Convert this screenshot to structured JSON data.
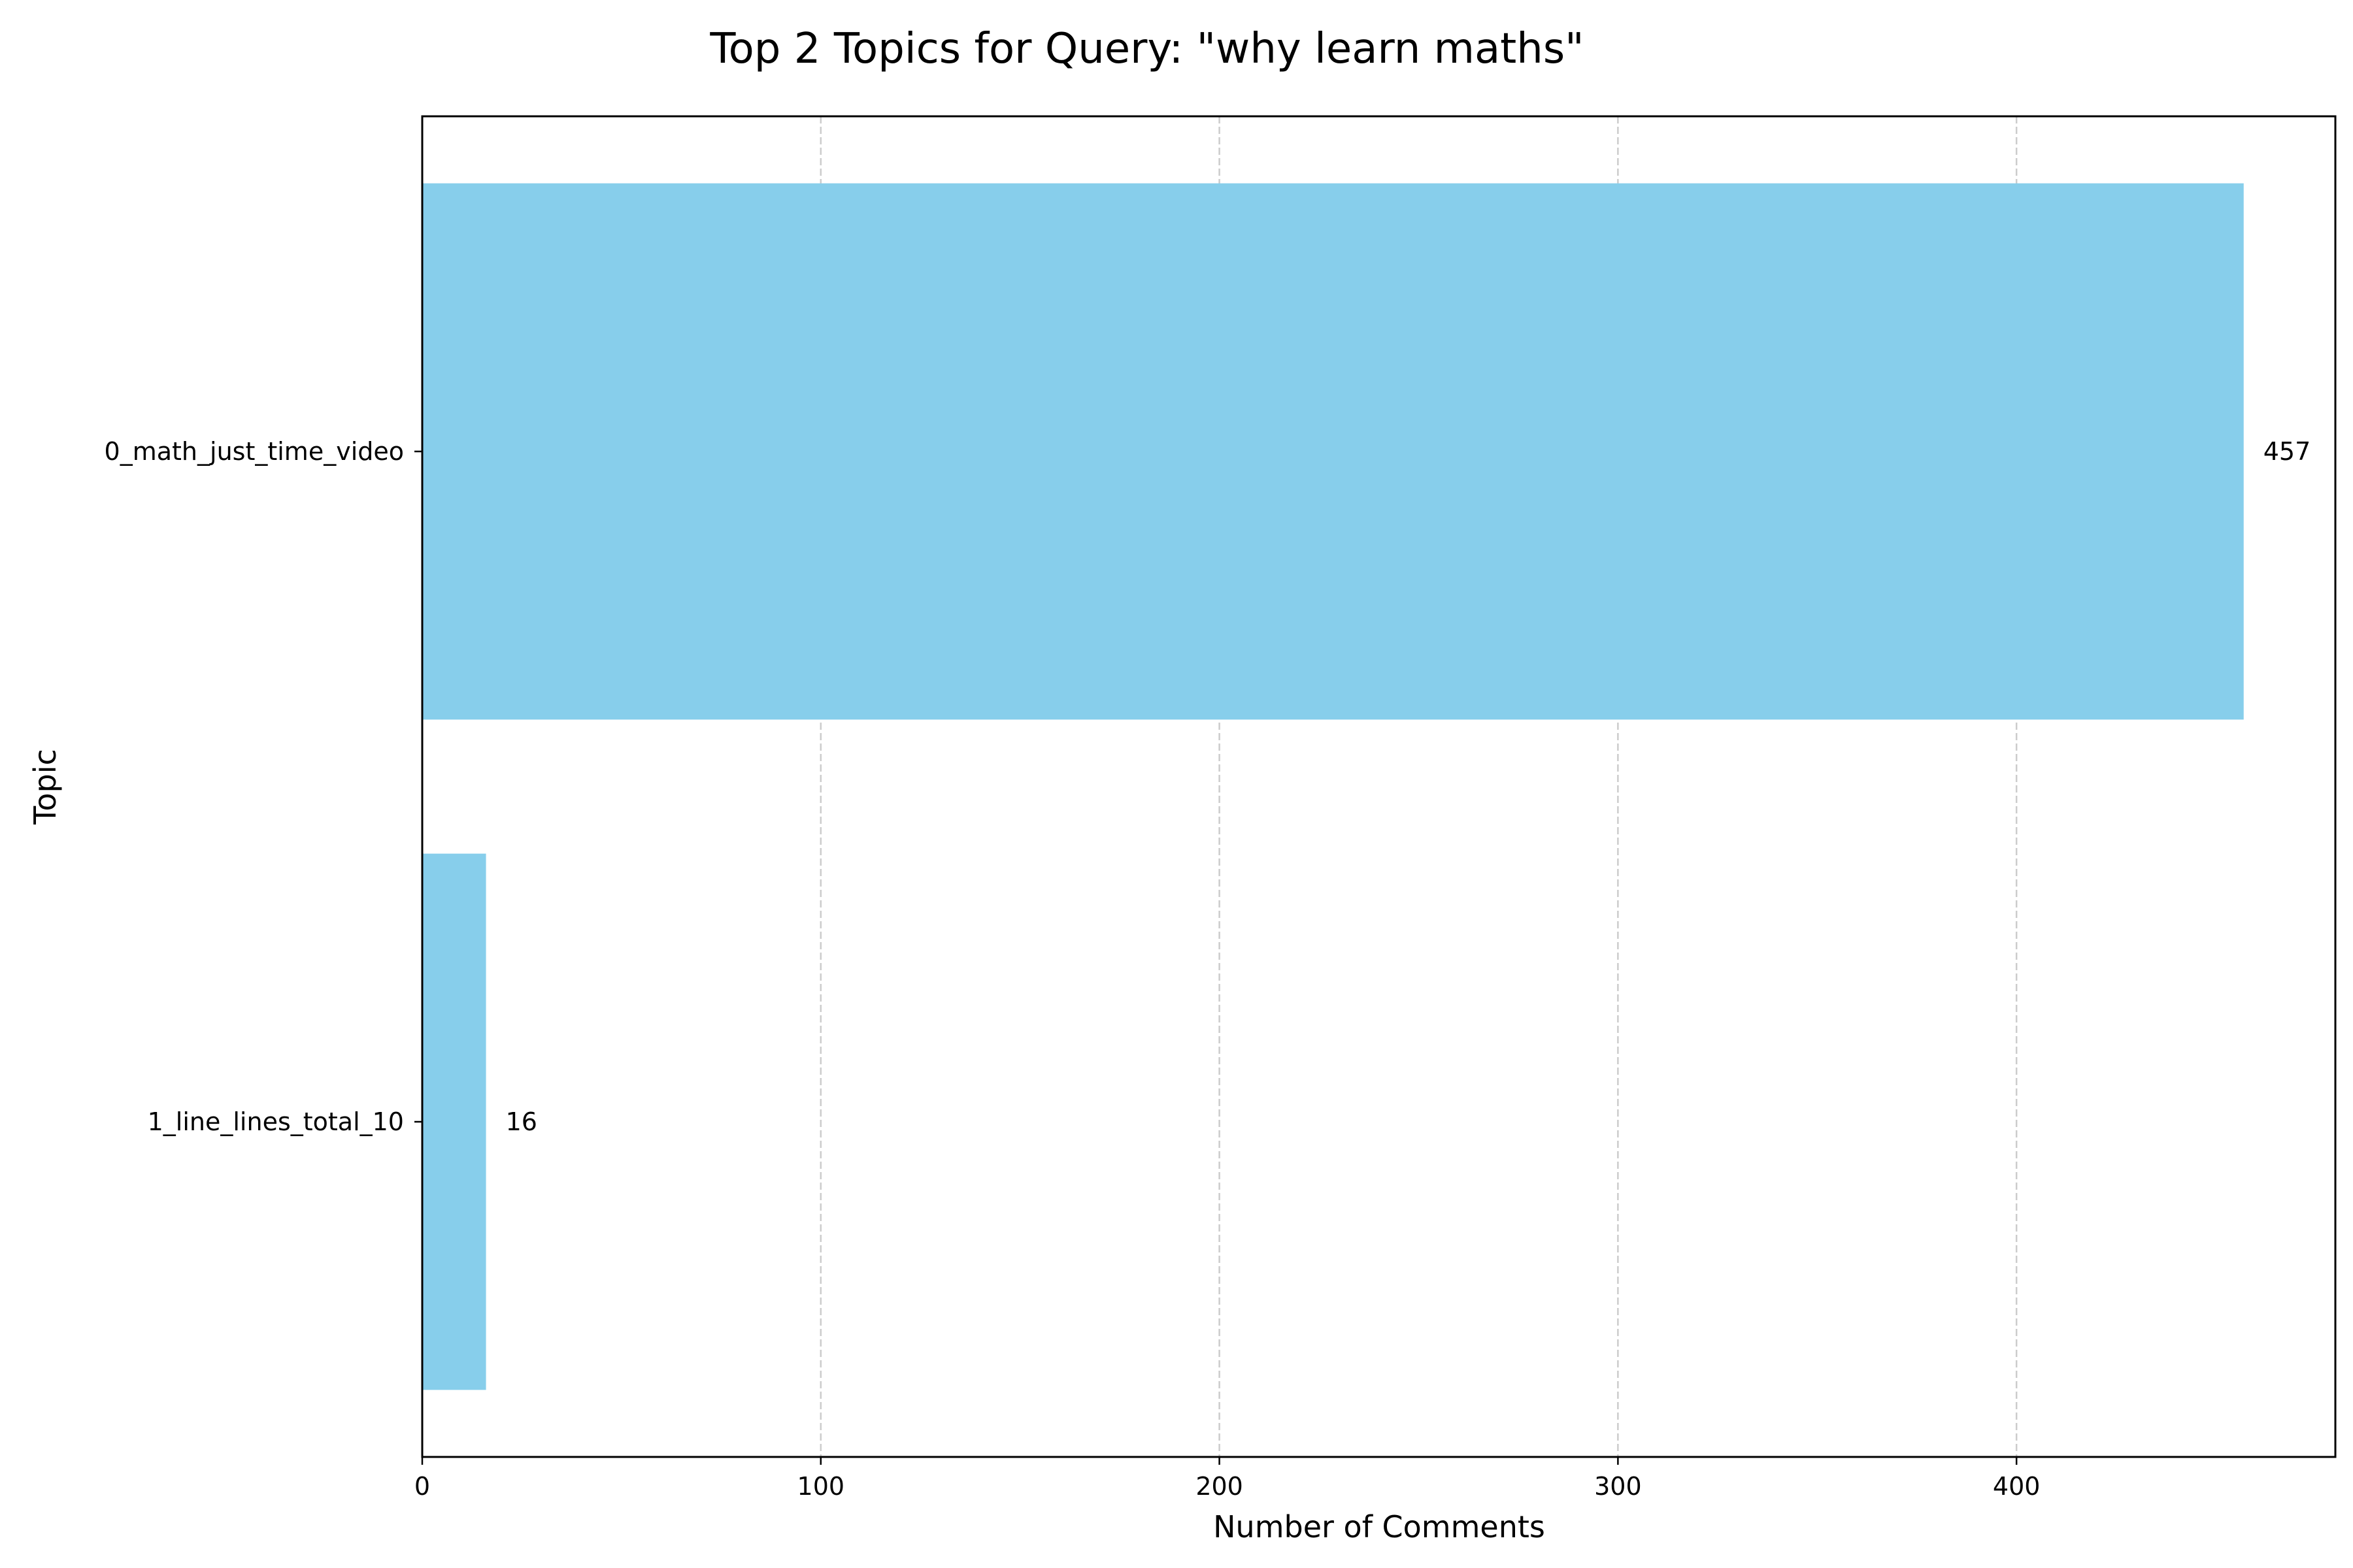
{
  "chart_data": {
    "type": "bar",
    "orientation": "horizontal",
    "title": "Top 2 Topics for Query: \"why learn maths\"",
    "xlabel": "Number of Comments",
    "ylabel": "Topic",
    "categories": [
      "0_math_just_time_video",
      "1_line_lines_total_10"
    ],
    "values": [
      457,
      16
    ],
    "value_labels": [
      "457",
      "16"
    ],
    "xlim": [
      0,
      480
    ],
    "xticks": [
      0,
      100,
      200,
      300,
      400
    ],
    "xtick_labels": [
      "0",
      "100",
      "200",
      "300",
      "400"
    ],
    "grid": "x-axis dashed",
    "bar_color": "#87CEEB",
    "grid_color": "#cccccc",
    "axis_color": "#000000"
  }
}
